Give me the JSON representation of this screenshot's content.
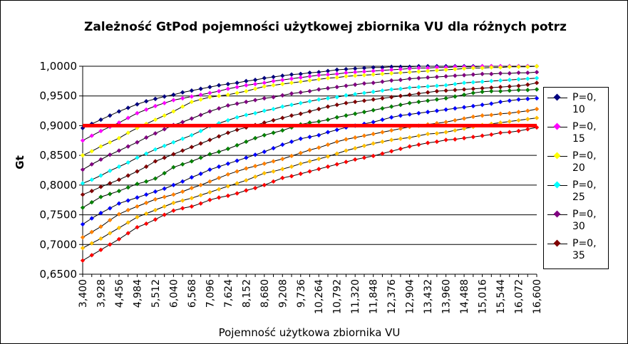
{
  "chart_data": {
    "type": "line",
    "title": "Zależność GtPod pojemności użytkowej zbiornika VU dla różnych potrz",
    "xlabel": "Pojemność użytkowa zbiornika VU",
    "ylabel": "Gt",
    "ylim": [
      0.65,
      1.0
    ],
    "y_ticks": [
      "0,6500",
      "0,7000",
      "0,7500",
      "0,8000",
      "0,8500",
      "0,9000",
      "0,9500",
      "1,0000"
    ],
    "y_tick_values": [
      0.65,
      0.7,
      0.75,
      0.8,
      0.85,
      0.9,
      0.95,
      1.0
    ],
    "grid": "horizontal",
    "legend_position": "right",
    "x": [
      "3,400",
      "3,664",
      "3,928",
      "4,192",
      "4,456",
      "4,720",
      "4,984",
      "5,248",
      "5,512",
      "5,776",
      "6,040",
      "6,304",
      "6,568",
      "6,832",
      "7,096",
      "7,360",
      "7,624",
      "7,888",
      "8,152",
      "8,416",
      "8,680",
      "8,944",
      "9,208",
      "9,472",
      "9,736",
      "10,000",
      "10,264",
      "10,528",
      "10,792",
      "11,056",
      "11,320",
      "11,584",
      "11,848",
      "12,112",
      "12,376",
      "12,640",
      "12,904",
      "13,168",
      "13,432",
      "13,696",
      "13,960",
      "14,224",
      "14,488",
      "14,752",
      "15,016",
      "15,280",
      "15,544",
      "15,808",
      "16,072",
      "16,336",
      "16,600"
    ],
    "x_tick_labels": [
      "3,400",
      "3,928",
      "4,456",
      "4,984",
      "5,512",
      "6,040",
      "6,568",
      "7,096",
      "7,624",
      "8,152",
      "8,680",
      "9,208",
      "9,736",
      "10,264",
      "10,792",
      "11,320",
      "11,848",
      "12,376",
      "12,904",
      "13,432",
      "13,960",
      "14,488",
      "15,016",
      "15,544",
      "16,072",
      "16,600"
    ],
    "reference_line": {
      "value": 0.9,
      "color": "#ff0000"
    },
    "series": [
      {
        "name": "P=0,\n10",
        "color": "#000080",
        "values": [
          0.896,
          0.903,
          0.91,
          0.917,
          0.924,
          0.93,
          0.936,
          0.941,
          0.945,
          0.949,
          0.952,
          0.956,
          0.959,
          0.962,
          0.965,
          0.968,
          0.97,
          0.972,
          0.975,
          0.977,
          0.98,
          0.982,
          0.984,
          0.986,
          0.987,
          0.989,
          0.99,
          0.992,
          0.994,
          0.995,
          0.996,
          0.997,
          0.998,
          0.998,
          0.999,
          0.999,
          0.999,
          1.0,
          1.0,
          1.0,
          1.0,
          1.0,
          1.0,
          1.0,
          1.0,
          1.0,
          1.0,
          1.0,
          1.0,
          1.0,
          1.0
        ]
      },
      {
        "name": "P=0,\n15",
        "color": "#ff00ff",
        "values": [
          0.875,
          0.883,
          0.891,
          0.898,
          0.905,
          0.913,
          0.921,
          0.927,
          0.933,
          0.938,
          0.943,
          0.946,
          0.949,
          0.952,
          0.955,
          0.958,
          0.962,
          0.965,
          0.968,
          0.97,
          0.972,
          0.975,
          0.977,
          0.979,
          0.981,
          0.983,
          0.985,
          0.986,
          0.987,
          0.989,
          0.99,
          0.991,
          0.992,
          0.993,
          0.994,
          0.995,
          0.996,
          0.997,
          0.997,
          0.998,
          0.998,
          0.999,
          0.999,
          0.999,
          1.0,
          1.0,
          1.0,
          1.0,
          1.0,
          1.0,
          1.0
        ]
      },
      {
        "name": "P=0,\n20",
        "color": "#ffff00",
        "values": [
          0.85,
          0.857,
          0.865,
          0.872,
          0.879,
          0.888,
          0.896,
          0.903,
          0.91,
          0.917,
          0.924,
          0.932,
          0.94,
          0.944,
          0.948,
          0.95,
          0.952,
          0.955,
          0.958,
          0.962,
          0.966,
          0.968,
          0.97,
          0.972,
          0.974,
          0.976,
          0.978,
          0.98,
          0.981,
          0.983,
          0.984,
          0.985,
          0.986,
          0.987,
          0.988,
          0.989,
          0.99,
          0.991,
          0.992,
          0.993,
          0.994,
          0.995,
          0.996,
          0.997,
          0.997,
          0.998,
          0.998,
          0.999,
          0.999,
          0.999,
          1.0
        ]
      },
      {
        "name": "P=0,\n25",
        "color": "#00ffff",
        "values": [
          0.803,
          0.809,
          0.816,
          0.824,
          0.831,
          0.838,
          0.846,
          0.853,
          0.86,
          0.866,
          0.872,
          0.878,
          0.884,
          0.891,
          0.899,
          0.904,
          0.909,
          0.914,
          0.918,
          0.921,
          0.925,
          0.928,
          0.932,
          0.935,
          0.938,
          0.941,
          0.944,
          0.946,
          0.948,
          0.951,
          0.953,
          0.955,
          0.957,
          0.959,
          0.961,
          0.962,
          0.964,
          0.965,
          0.966,
          0.967,
          0.968,
          0.97,
          0.972,
          0.973,
          0.974,
          0.975,
          0.976,
          0.977,
          0.978,
          0.979,
          0.98
        ]
      },
      {
        "name": "P=0,\n30",
        "color": "#800080",
        "values": [
          0.826,
          0.835,
          0.843,
          0.851,
          0.858,
          0.865,
          0.872,
          0.88,
          0.887,
          0.894,
          0.901,
          0.906,
          0.912,
          0.918,
          0.924,
          0.929,
          0.934,
          0.937,
          0.94,
          0.943,
          0.946,
          0.948,
          0.951,
          0.954,
          0.956,
          0.958,
          0.961,
          0.963,
          0.965,
          0.967,
          0.969,
          0.971,
          0.972,
          0.974,
          0.976,
          0.977,
          0.979,
          0.98,
          0.981,
          0.982,
          0.983,
          0.984,
          0.985,
          0.986,
          0.987,
          0.987,
          0.988,
          0.988,
          0.989,
          0.989,
          0.99
        ]
      },
      {
        "name": "P=0,\n35",
        "color": "#800000",
        "values": [
          0.784,
          0.79,
          0.797,
          0.803,
          0.809,
          0.816,
          0.823,
          0.831,
          0.84,
          0.846,
          0.852,
          0.858,
          0.864,
          0.87,
          0.876,
          0.882,
          0.888,
          0.893,
          0.897,
          0.901,
          0.905,
          0.909,
          0.913,
          0.917,
          0.92,
          0.924,
          0.928,
          0.932,
          0.935,
          0.938,
          0.94,
          0.942,
          0.944,
          0.946,
          0.948,
          0.95,
          0.952,
          0.954,
          0.956,
          0.958,
          0.959,
          0.96,
          0.961,
          0.962,
          0.963,
          0.964,
          0.965,
          0.966,
          0.967,
          0.969,
          0.972
        ]
      },
      {
        "name": "",
        "color": "#008000",
        "values": [
          0.762,
          0.771,
          0.78,
          0.785,
          0.79,
          0.796,
          0.802,
          0.806,
          0.811,
          0.82,
          0.83,
          0.835,
          0.84,
          0.846,
          0.852,
          0.856,
          0.861,
          0.867,
          0.873,
          0.879,
          0.884,
          0.888,
          0.892,
          0.897,
          0.902,
          0.905,
          0.907,
          0.91,
          0.914,
          0.917,
          0.92,
          0.923,
          0.926,
          0.929,
          0.932,
          0.935,
          0.938,
          0.94,
          0.942,
          0.944,
          0.946,
          0.949,
          0.952,
          0.955,
          0.957,
          0.958,
          0.958,
          0.959,
          0.96,
          0.96,
          0.961
        ]
      },
      {
        "name": "",
        "color": "#0000ff",
        "values": [
          0.734,
          0.744,
          0.753,
          0.761,
          0.769,
          0.774,
          0.779,
          0.784,
          0.789,
          0.794,
          0.8,
          0.806,
          0.813,
          0.819,
          0.826,
          0.831,
          0.836,
          0.841,
          0.846,
          0.851,
          0.856,
          0.862,
          0.868,
          0.873,
          0.878,
          0.881,
          0.884,
          0.889,
          0.893,
          0.897,
          0.9,
          0.903,
          0.906,
          0.91,
          0.914,
          0.917,
          0.919,
          0.921,
          0.923,
          0.925,
          0.927,
          0.929,
          0.931,
          0.933,
          0.935,
          0.937,
          0.94,
          0.942,
          0.944,
          0.945,
          0.946
        ]
      },
      {
        "name": "",
        "color": "#ff8000",
        "values": [
          0.712,
          0.721,
          0.73,
          0.741,
          0.751,
          0.758,
          0.764,
          0.77,
          0.776,
          0.78,
          0.784,
          0.789,
          0.795,
          0.8,
          0.806,
          0.812,
          0.818,
          0.823,
          0.828,
          0.832,
          0.836,
          0.84,
          0.844,
          0.849,
          0.854,
          0.859,
          0.863,
          0.868,
          0.873,
          0.877,
          0.88,
          0.883,
          0.886,
          0.889,
          0.892,
          0.895,
          0.898,
          0.9,
          0.902,
          0.904,
          0.906,
          0.909,
          0.912,
          0.915,
          0.917,
          0.918,
          0.92,
          0.921,
          0.923,
          0.925,
          0.928
        ]
      },
      {
        "name": "",
        "color": "#ffc000",
        "values": [
          0.694,
          0.702,
          0.71,
          0.719,
          0.728,
          0.737,
          0.746,
          0.752,
          0.758,
          0.764,
          0.77,
          0.774,
          0.778,
          0.783,
          0.788,
          0.793,
          0.798,
          0.803,
          0.808,
          0.814,
          0.82,
          0.823,
          0.827,
          0.831,
          0.836,
          0.84,
          0.844,
          0.848,
          0.853,
          0.858,
          0.862,
          0.866,
          0.87,
          0.873,
          0.876,
          0.878,
          0.88,
          0.883,
          0.886,
          0.887,
          0.889,
          0.892,
          0.895,
          0.898,
          0.901,
          0.903,
          0.905,
          0.907,
          0.909,
          0.911,
          0.913
        ]
      },
      {
        "name": "",
        "color": "#ff0000",
        "values": [
          0.673,
          0.682,
          0.691,
          0.7,
          0.709,
          0.719,
          0.729,
          0.735,
          0.742,
          0.75,
          0.757,
          0.761,
          0.764,
          0.769,
          0.775,
          0.779,
          0.782,
          0.786,
          0.791,
          0.795,
          0.8,
          0.806,
          0.812,
          0.815,
          0.819,
          0.823,
          0.827,
          0.831,
          0.835,
          0.839,
          0.843,
          0.846,
          0.849,
          0.853,
          0.857,
          0.861,
          0.865,
          0.868,
          0.871,
          0.873,
          0.876,
          0.877,
          0.879,
          0.881,
          0.883,
          0.885,
          0.888,
          0.889,
          0.891,
          0.894,
          0.897
        ]
      }
    ]
  }
}
